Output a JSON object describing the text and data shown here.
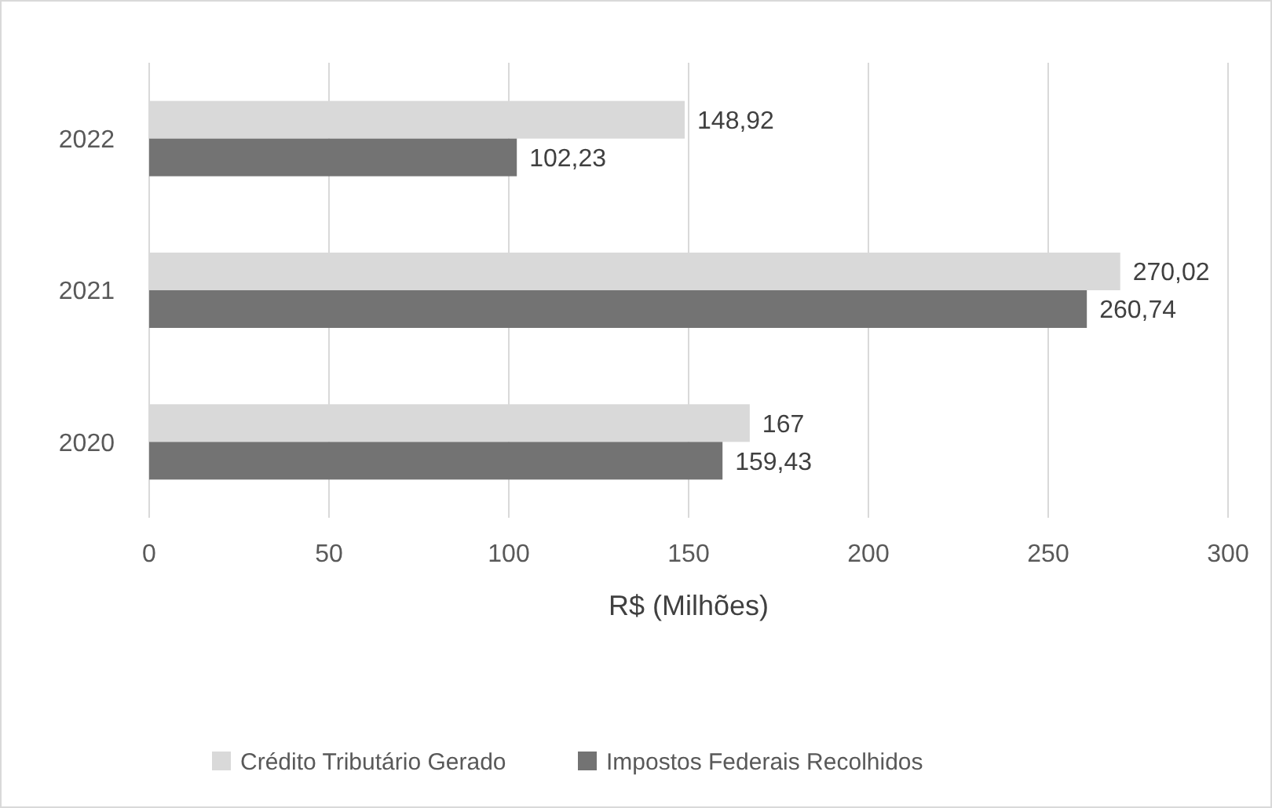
{
  "chart_data": {
    "type": "bar",
    "orientation": "horizontal",
    "xlabel": "R$ (Milhões)",
    "categories": [
      "2022",
      "2021",
      "2020"
    ],
    "series": [
      {
        "name": "Crédito Tributário Gerado",
        "color": "#d9d9d9",
        "values": [
          148.92,
          270.02,
          167
        ],
        "value_labels": [
          "148,92",
          "270,02",
          "167"
        ]
      },
      {
        "name": "Impostos Federais Recolhidos",
        "color": "#737373",
        "values": [
          102.23,
          260.74,
          159.43
        ],
        "value_labels": [
          "102,23",
          "260,74",
          "159,43"
        ]
      }
    ],
    "xlim": [
      0,
      300
    ],
    "xticks": [
      0,
      50,
      100,
      150,
      200,
      250,
      300
    ],
    "grid": "x",
    "legend": "bottom"
  }
}
